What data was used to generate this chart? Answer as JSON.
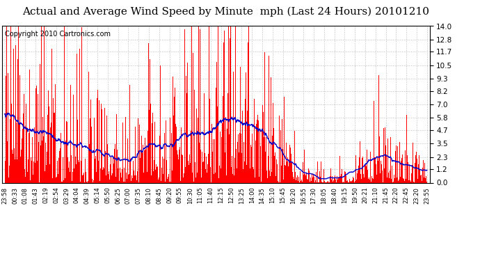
{
  "title": "Actual and Average Wind Speed by Minute  mph (Last 24 Hours) 20101210",
  "copyright": "Copyright 2010 Cartronics.com",
  "yticks": [
    0.0,
    1.2,
    2.3,
    3.5,
    4.7,
    5.8,
    7.0,
    8.2,
    9.3,
    10.5,
    11.7,
    12.8,
    14.0
  ],
  "ylim": [
    0.0,
    14.0
  ],
  "bar_color": "#FF0000",
  "line_color": "#0000CC",
  "bg_color": "#FFFFFF",
  "plot_bg": "#FFFFFF",
  "grid_color": "#BBBBBB",
  "title_fontsize": 11,
  "copyright_fontsize": 7,
  "xtick_labels": [
    "23:58",
    "00:33",
    "01:08",
    "01:43",
    "02:19",
    "02:54",
    "03:29",
    "04:04",
    "04:39",
    "05:14",
    "05:50",
    "06:25",
    "07:00",
    "07:35",
    "08:10",
    "08:45",
    "09:20",
    "09:55",
    "10:30",
    "11:05",
    "11:40",
    "12:15",
    "12:50",
    "13:25",
    "14:00",
    "14:35",
    "15:10",
    "15:45",
    "16:20",
    "16:55",
    "17:30",
    "18:05",
    "18:40",
    "19:15",
    "19:50",
    "20:21",
    "21:10",
    "21:45",
    "22:20",
    "22:45",
    "23:20",
    "23:55"
  ]
}
